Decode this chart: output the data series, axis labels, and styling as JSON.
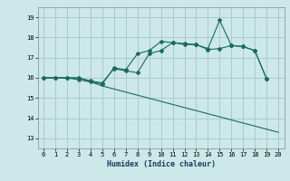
{
  "xlabel": "Humidex (Indice chaleur)",
  "bg_color": "#cce8e8",
  "grid_color": "#aacccc",
  "line_color": "#1a6b5a",
  "xlim": [
    -0.5,
    20.5
  ],
  "ylim": [
    12.5,
    19.5
  ],
  "xticks": [
    0,
    1,
    2,
    3,
    4,
    5,
    6,
    7,
    8,
    9,
    10,
    11,
    12,
    13,
    14,
    15,
    16,
    17,
    18,
    19,
    20
  ],
  "yticks": [
    13,
    14,
    15,
    16,
    17,
    18,
    19
  ],
  "series": [
    {
      "x": [
        0,
        1,
        2,
        3,
        4,
        5,
        6,
        7,
        8,
        9,
        10,
        11,
        12,
        13,
        14,
        15,
        16,
        17,
        18,
        19
      ],
      "y": [
        16.0,
        16.0,
        16.0,
        16.0,
        15.85,
        15.75,
        16.45,
        16.35,
        16.25,
        17.2,
        17.35,
        17.75,
        17.65,
        17.65,
        17.4,
        17.45,
        17.6,
        17.55,
        17.35,
        15.95
      ],
      "marker": "D",
      "markersize": 2.0
    },
    {
      "x": [
        0,
        1,
        2,
        3,
        4,
        5,
        6,
        7,
        8,
        9,
        10,
        11,
        12,
        13,
        14,
        15,
        16,
        17,
        18,
        19
      ],
      "y": [
        16.0,
        16.0,
        16.0,
        15.9,
        15.8,
        15.7,
        16.5,
        16.4,
        17.2,
        17.35,
        17.8,
        17.75,
        17.7,
        17.65,
        17.45,
        18.85,
        17.6,
        17.55,
        17.35,
        15.95
      ],
      "marker": "*",
      "markersize": 3.0
    },
    {
      "x": [
        0,
        2,
        3,
        4,
        5,
        20
      ],
      "y": [
        16.0,
        16.0,
        16.0,
        15.8,
        15.6,
        13.3
      ],
      "marker": null,
      "markersize": 0
    }
  ]
}
